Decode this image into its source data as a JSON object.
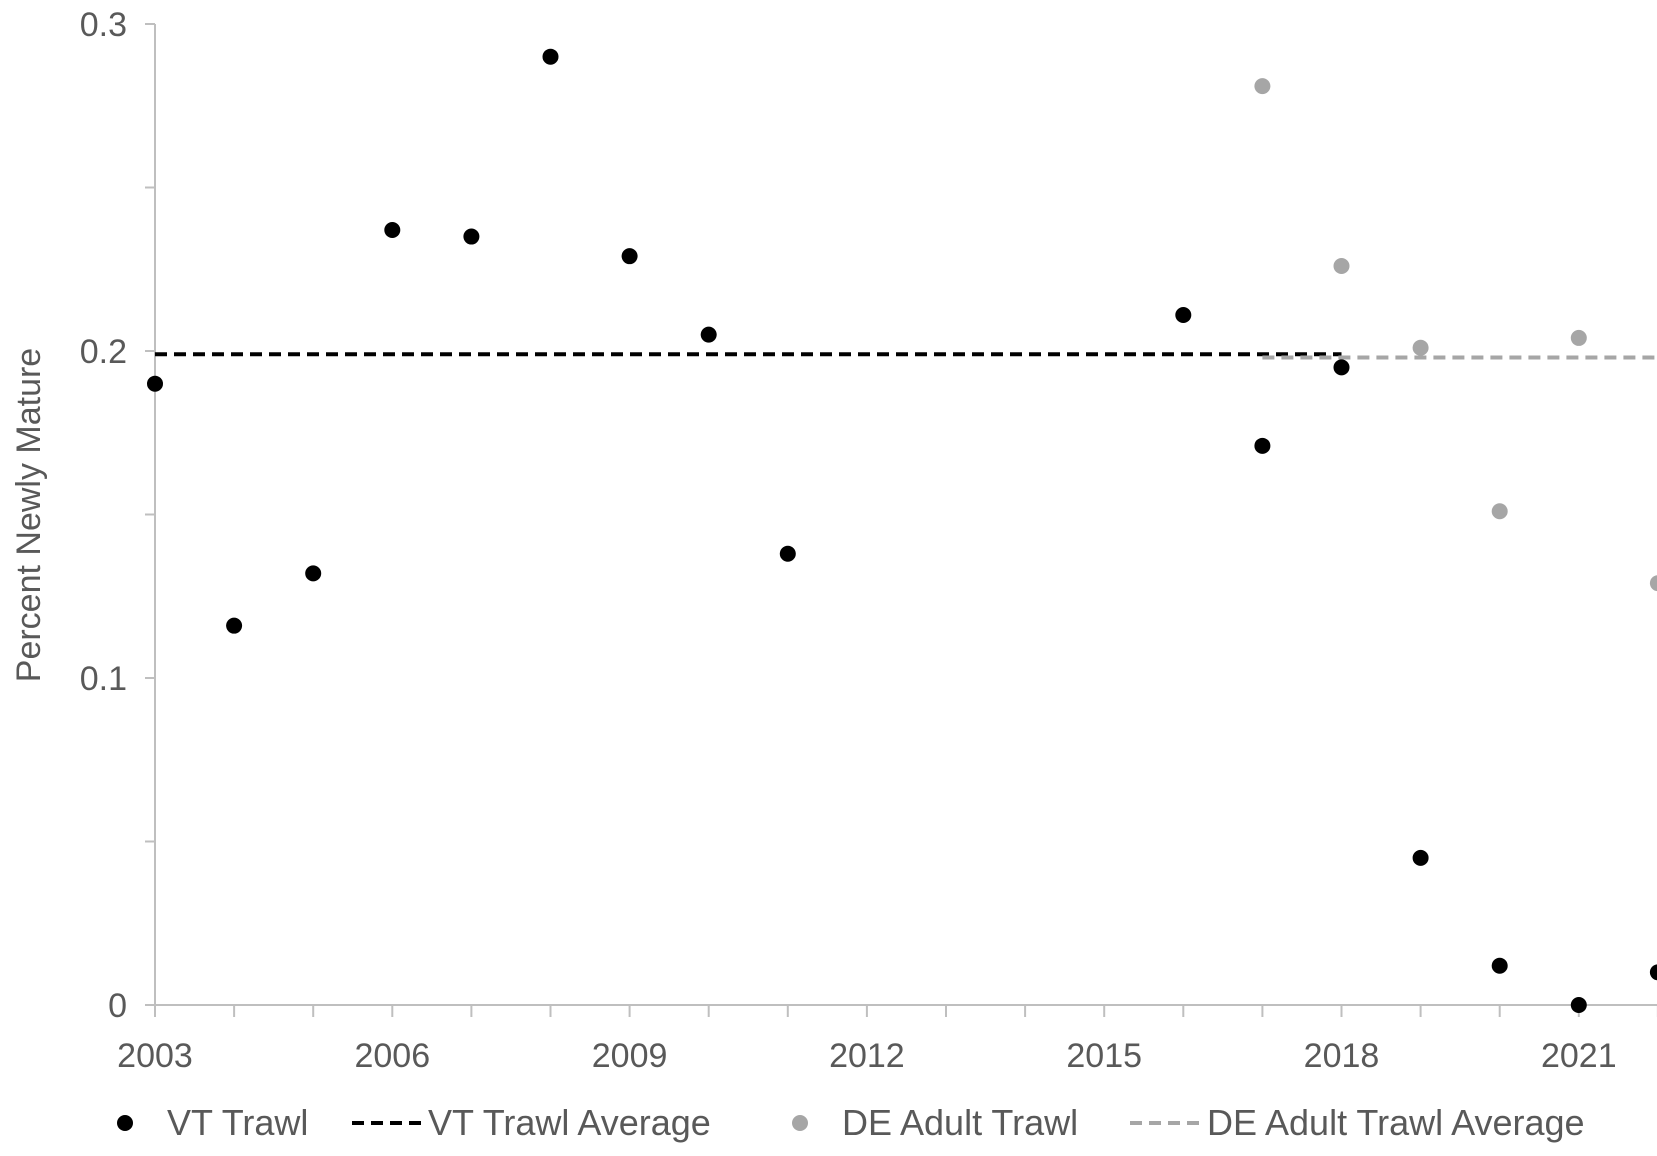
{
  "chart_data": {
    "type": "scatter",
    "title": "",
    "xlabel": "",
    "ylabel": "Percent Newly Mature",
    "xlim": [
      2003,
      2022
    ],
    "ylim": [
      0,
      0.3
    ],
    "x_ticks": [
      2003,
      2006,
      2009,
      2012,
      2015,
      2018,
      2021
    ],
    "y_ticks": [
      0,
      0.1,
      0.2,
      0.3
    ],
    "grid": false,
    "legend_position": "bottom",
    "colors": {
      "vt": "#000000",
      "de": "#a6a6a6",
      "axis": "#bfbfbf",
      "text": "#595959"
    },
    "series": [
      {
        "name": "VT Trawl",
        "kind": "points",
        "color": "#000000",
        "points": [
          {
            "x": 2003,
            "y": 0.19
          },
          {
            "x": 2004,
            "y": 0.116
          },
          {
            "x": 2005,
            "y": 0.132
          },
          {
            "x": 2006,
            "y": 0.237
          },
          {
            "x": 2007,
            "y": 0.235
          },
          {
            "x": 2008,
            "y": 0.29
          },
          {
            "x": 2009,
            "y": 0.229
          },
          {
            "x": 2010,
            "y": 0.205
          },
          {
            "x": 2011,
            "y": 0.138
          },
          {
            "x": 2016,
            "y": 0.211
          },
          {
            "x": 2017,
            "y": 0.171
          },
          {
            "x": 2018,
            "y": 0.195
          },
          {
            "x": 2019,
            "y": 0.045
          },
          {
            "x": 2020,
            "y": 0.012
          },
          {
            "x": 2021,
            "y": 0.0
          },
          {
            "x": 2022,
            "y": 0.01
          }
        ]
      },
      {
        "name": "VT Trawl Average",
        "kind": "line",
        "color": "#000000",
        "dashed": true,
        "points": [
          {
            "x": 2003,
            "y": 0.199
          },
          {
            "x": 2018,
            "y": 0.199
          }
        ]
      },
      {
        "name": "DE Adult Trawl",
        "kind": "points",
        "color": "#a6a6a6",
        "points": [
          {
            "x": 2017,
            "y": 0.281
          },
          {
            "x": 2018,
            "y": 0.226
          },
          {
            "x": 2019,
            "y": 0.201
          },
          {
            "x": 2020,
            "y": 0.151
          },
          {
            "x": 2021,
            "y": 0.204
          },
          {
            "x": 2022,
            "y": 0.129
          }
        ]
      },
      {
        "name": "DE Adult Trawl Average",
        "kind": "line",
        "color": "#a6a6a6",
        "dashed": true,
        "points": [
          {
            "x": 2017,
            "y": 0.198
          },
          {
            "x": 2022,
            "y": 0.198
          }
        ]
      }
    ]
  }
}
